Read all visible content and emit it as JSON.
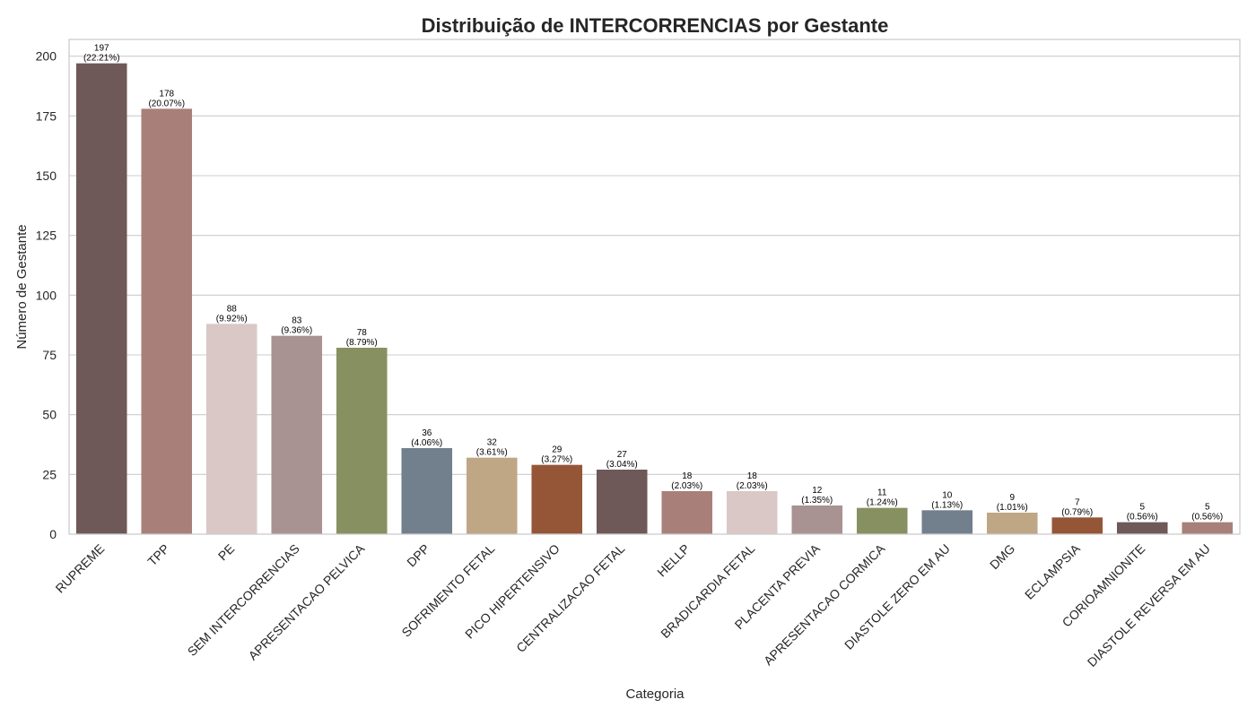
{
  "chart_data": {
    "type": "bar",
    "title": "Distribuição de INTERCORRENCIAS por Gestante",
    "xlabel": "Categoria",
    "ylabel": "Número de Gestante",
    "ylim": [
      0,
      207
    ],
    "yticks": [
      0,
      25,
      50,
      75,
      100,
      125,
      150,
      175,
      200
    ],
    "grid": true,
    "categories": [
      "RUPREME",
      "TPP",
      "PE",
      "SEM INTERCORRENCIAS",
      "APRESENTACAO PELVICA",
      "DPP",
      "SOFRIMENTO FETAL",
      "PICO HIPERTENSIVO",
      "CENTRALIZACAO FETAL",
      "HELLP",
      "BRADICARDIA FETAL",
      "PLACENTA PREVIA",
      "APRESENTACAO CORMICA",
      "DIASTOLE ZERO EM AU",
      "DMG",
      "ECLAMPSIA",
      "CORIOAMNIONITE",
      "DIASTOLE REVERSA EM AU"
    ],
    "values": [
      197,
      178,
      88,
      83,
      78,
      36,
      32,
      29,
      27,
      18,
      18,
      12,
      11,
      10,
      9,
      7,
      5,
      5
    ],
    "percent_labels": [
      "(22.21%)",
      "(20.07%)",
      "(9.92%)",
      "(9.36%)",
      "(8.79%)",
      "(4.06%)",
      "(3.61%)",
      "(3.27%)",
      "(3.04%)",
      "(2.03%)",
      "(2.03%)",
      "(1.35%)",
      "(1.24%)",
      "(1.13%)",
      "(1.01%)",
      "(0.79%)",
      "(0.56%)",
      "(0.56%)"
    ],
    "colors": [
      "#6e5858",
      "#a97f7a",
      "#d9c8c5",
      "#a89292",
      "#879060",
      "#727f8c",
      "#bfa685",
      "#955638",
      "#6e5858",
      "#a97f7a",
      "#d9c8c5",
      "#a89292",
      "#879060",
      "#727f8c",
      "#bfa685",
      "#955638",
      "#6e5858",
      "#a97f7a"
    ],
    "grid_color": "#cccccc",
    "frame_color": "#cccccc"
  }
}
